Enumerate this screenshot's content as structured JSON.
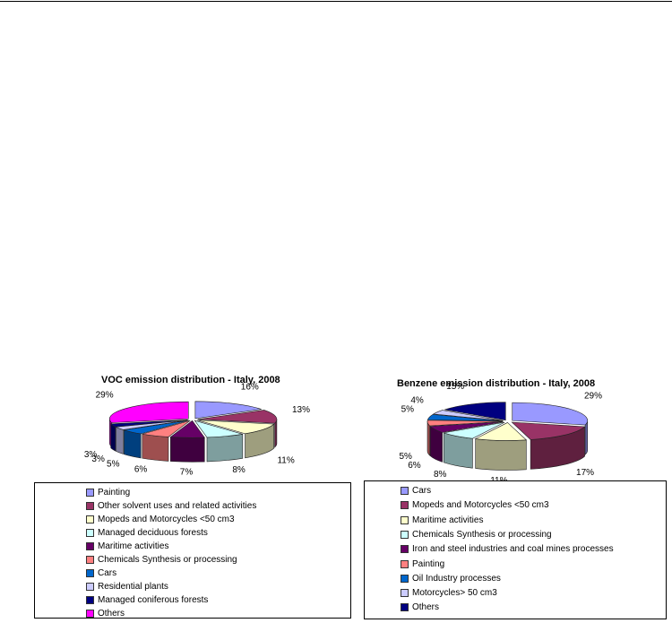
{
  "chart_data": [
    {
      "type": "pie",
      "title": "VOC emission distribution - Italy, 2008",
      "slices": [
        {
          "label": "Painting",
          "value": 16,
          "text": "16%",
          "color": "#9999ff"
        },
        {
          "label": "Other solvent uses and related activities",
          "value": 13,
          "text": "13%",
          "color": "#993366"
        },
        {
          "label": "Mopeds and Motorcycles <50 cm3",
          "value": 11,
          "text": "11%",
          "color": "#ffffcc"
        },
        {
          "label": "Managed deciduous forests",
          "value": 8,
          "text": "8%",
          "color": "#ccffff"
        },
        {
          "label": "Maritime activities",
          "value": 7,
          "text": "7%",
          "color": "#660066"
        },
        {
          "label": "Chemicals Synthesis or processing",
          "value": 6,
          "text": "6%",
          "color": "#ff8080"
        },
        {
          "label": "Cars",
          "value": 5,
          "text": "5%",
          "color": "#0066cc"
        },
        {
          "label": "Residential plants",
          "value": 3,
          "text": "3%",
          "color": "#ccccff"
        },
        {
          "label": "Managed coniferous forests",
          "value": 3,
          "text": "3%",
          "color": "#000080"
        },
        {
          "label": "Others",
          "value": 29,
          "text": "29%",
          "color": "#ff00ff"
        }
      ],
      "legend": "bottom"
    },
    {
      "type": "pie",
      "title": "Benzene emission distribution - Italy, 2008",
      "slices": [
        {
          "label": "Cars",
          "value": 29,
          "text": "29%",
          "color": "#9999ff"
        },
        {
          "label": "Mopeds and Motorcycles <50 cm3",
          "value": 17,
          "text": "17%",
          "color": "#993366"
        },
        {
          "label": "Maritime activities",
          "value": 11,
          "text": "11%",
          "color": "#ffffcc"
        },
        {
          "label": "Chemicals Synthesis or processing",
          "value": 8,
          "text": "8%",
          "color": "#ccffff"
        },
        {
          "label": "Iron and steel industries and  coal mines processes",
          "value": 6,
          "text": "6%",
          "color": "#660066"
        },
        {
          "label": "Painting",
          "value": 5,
          "text": "5%",
          "color": "#ff8080"
        },
        {
          "label": "Oil Industry processes",
          "value": 5,
          "text": "5%",
          "color": "#0066cc"
        },
        {
          "label": "Motorcycles> 50 cm3",
          "value": 4,
          "text": "4%",
          "color": "#ccccff"
        },
        {
          "label": "Others",
          "value": 15,
          "text": "15%",
          "color": "#000080"
        }
      ],
      "legend": "bottom"
    }
  ]
}
